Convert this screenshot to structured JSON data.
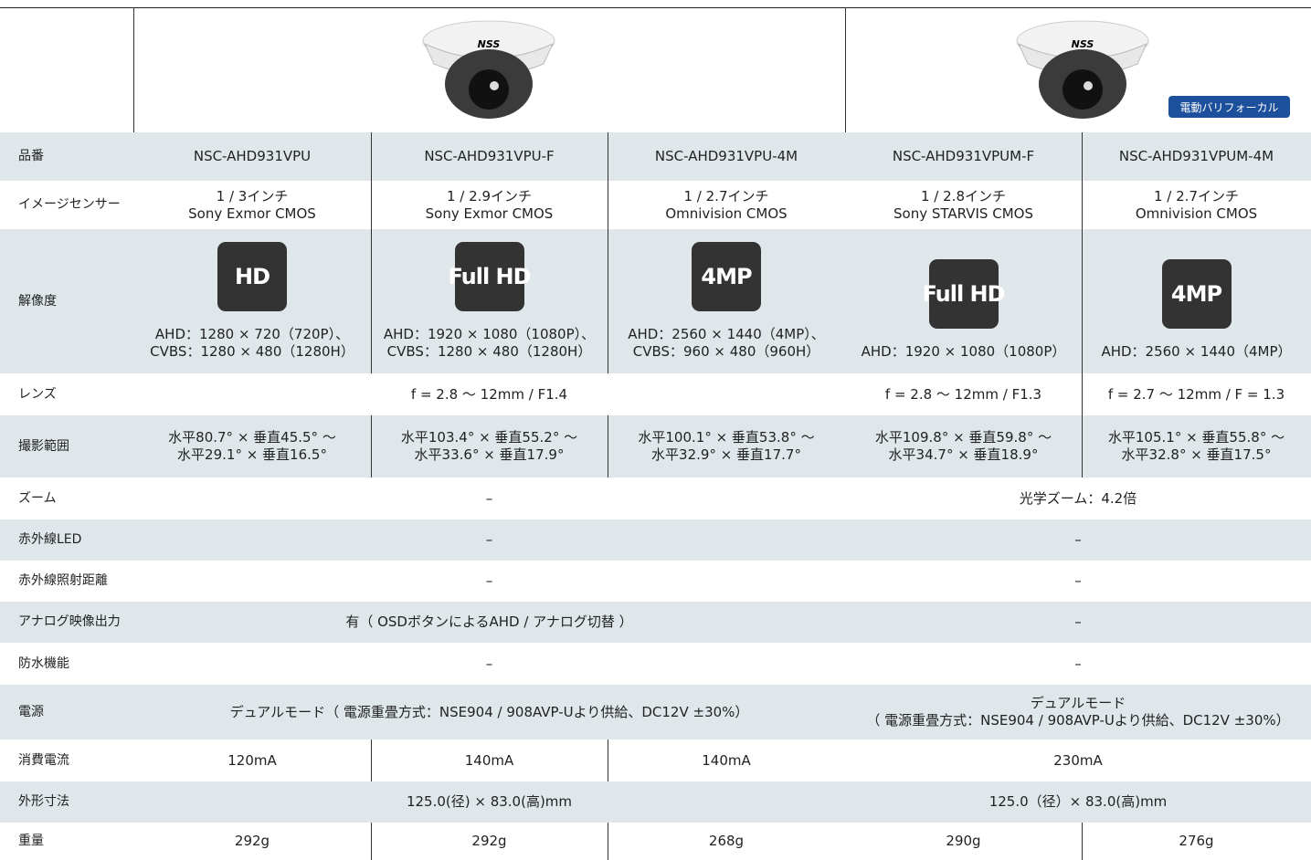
{
  "header": {
    "logo": "NSS",
    "badge": "電動バリフォーカル"
  },
  "rows": [
    {
      "label": "品番",
      "cells": [
        {
          "lines": [
            "NSC-AHD931VPU"
          ]
        },
        {
          "lines": [
            "NSC-AHD931VPU-F"
          ]
        },
        {
          "lines": [
            "NSC-AHD931VPU-4M"
          ]
        },
        {
          "lines": [
            "NSC-AHD931VPUM-F"
          ]
        },
        {
          "lines": [
            "NSC-AHD931VPUM-4M"
          ]
        }
      ]
    },
    {
      "label": "イメージセンサー",
      "cells": [
        {
          "lines": [
            "1 / 3インチ",
            "Sony Exmor CMOS"
          ]
        },
        {
          "lines": [
            "1 / 2.9インチ",
            "Sony Exmor CMOS"
          ]
        },
        {
          "lines": [
            "1 / 2.7インチ",
            "Omnivision CMOS"
          ]
        },
        {
          "lines": [
            "1 / 2.8インチ",
            "Sony STARVIS CMOS"
          ]
        },
        {
          "lines": [
            "1 / 2.7インチ",
            "Omnivision CMOS"
          ]
        }
      ]
    },
    {
      "label": "解像度",
      "cells": [
        {
          "icon": "HD",
          "lines": [
            "AHD：1280 × 720（720P）、",
            "CVBS：1280 × 480（1280H）"
          ]
        },
        {
          "icon": "Full HD",
          "lines": [
            "AHD：1920 × 1080（1080P）、",
            "CVBS：1280 × 480（1280H）"
          ]
        },
        {
          "icon": "4MP",
          "lines": [
            "AHD：2560 × 1440（4MP）、",
            "CVBS：960 × 480（960H）"
          ]
        },
        {
          "icon": "Full HD",
          "lines": [
            "AHD：1920 × 1080（1080P）"
          ]
        },
        {
          "icon": "4MP",
          "lines": [
            "AHD：2560 × 1440（4MP）"
          ]
        }
      ]
    },
    {
      "label": "レンズ",
      "cells": [
        {
          "lines": [
            "f = 2.8 〜 12mm / F1.4"
          ]
        },
        {
          "lines": [
            "f = 2.8 〜 12mm / F1.3"
          ]
        },
        {
          "lines": [
            "f = 2.7 〜 12mm / F = 1.3"
          ]
        }
      ]
    },
    {
      "label": "撮影範囲",
      "cells": [
        {
          "lines": [
            "水平80.7° × 垂直45.5° 〜",
            "水平29.1° × 垂直16.5°"
          ]
        },
        {
          "lines": [
            "水平103.4° × 垂直55.2° 〜",
            "水平33.6° × 垂直17.9°"
          ]
        },
        {
          "lines": [
            "水平100.1° × 垂直53.8° 〜",
            "水平32.9° × 垂直17.7°"
          ]
        },
        {
          "lines": [
            "水平109.8° × 垂直59.8° 〜",
            "水平34.7° × 垂直18.9°"
          ]
        },
        {
          "lines": [
            "水平105.1° × 垂直55.8° 〜",
            "水平32.8° × 垂直17.5°"
          ]
        }
      ]
    },
    {
      "label": "ズーム",
      "cells": [
        {
          "lines": [
            "–"
          ]
        },
        {
          "lines": [
            "光学ズーム：4.2倍"
          ]
        }
      ]
    },
    {
      "label": "赤外線LED",
      "cells": [
        {
          "lines": [
            "–"
          ]
        },
        {
          "lines": [
            "–"
          ]
        }
      ]
    },
    {
      "label": "赤外線照射距離",
      "cells": [
        {
          "lines": [
            "–"
          ]
        },
        {
          "lines": [
            "–"
          ]
        }
      ]
    },
    {
      "label": "アナログ映像出力",
      "cells": [
        {
          "lines": [
            "有（ OSDボタンによるAHD / アナログ切替 ）"
          ]
        },
        {
          "lines": [
            "–"
          ]
        }
      ]
    },
    {
      "label": "防水機能",
      "cells": [
        {
          "lines": [
            "–"
          ]
        },
        {
          "lines": [
            "–"
          ]
        }
      ]
    },
    {
      "label": "電源",
      "cells": [
        {
          "lines": [
            "デュアルモード（ 電源重畳方式：NSE904 / 908AVP-Uより供給、DC12V ±30%）"
          ]
        },
        {
          "lines": [
            "デュアルモード",
            "（ 電源重畳方式：NSE904 / 908AVP-Uより供給、DC12V ±30%）"
          ]
        }
      ]
    },
    {
      "label": "消費電流",
      "cells": [
        {
          "lines": [
            "120mA"
          ]
        },
        {
          "lines": [
            "140mA"
          ]
        },
        {
          "lines": [
            "140mA"
          ]
        },
        {
          "lines": [
            "230mA"
          ]
        }
      ]
    },
    {
      "label": "外形寸法",
      "cells": [
        {
          "lines": [
            "125.0(径) × 83.0(高)mm"
          ]
        },
        {
          "lines": [
            "125.0（径）× 83.0(高)mm"
          ]
        }
      ]
    },
    {
      "label": "重量",
      "cells": [
        {
          "lines": [
            "292g"
          ]
        },
        {
          "lines": [
            "292g"
          ]
        },
        {
          "lines": [
            "268g"
          ]
        },
        {
          "lines": [
            "290g"
          ]
        },
        {
          "lines": [
            "276g"
          ]
        }
      ]
    }
  ]
}
